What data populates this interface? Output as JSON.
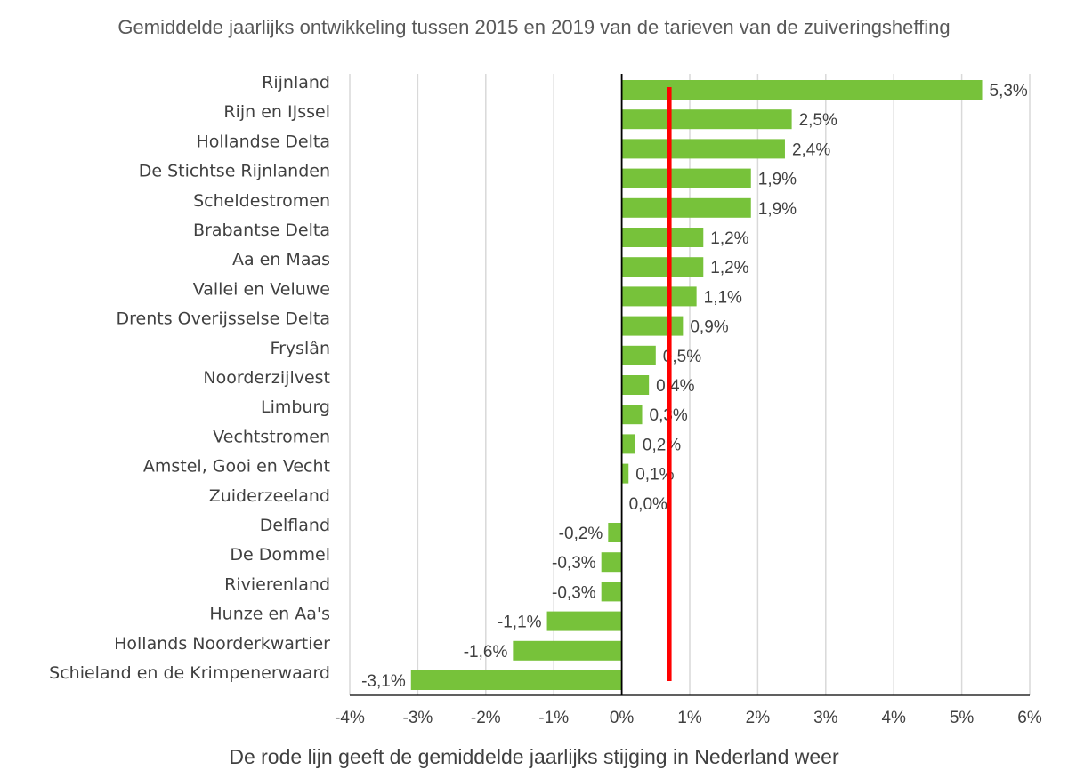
{
  "chart_data": {
    "type": "bar",
    "orientation": "horizontal",
    "title": "Gemiddelde jaarlijks ontwikkeling tussen 2015 en 2019 van de tarieven van de zuiveringsheffing",
    "xlabel": "De rode lijn geeft de gemiddelde jaarlijks stijging in Nederland weer",
    "ylabel": "",
    "xlim": [
      -4,
      6
    ],
    "x_ticks": [
      "-4%",
      "-3%",
      "-2%",
      "-1%",
      "0%",
      "1%",
      "2%",
      "3%",
      "4%",
      "5%",
      "6%"
    ],
    "grid": true,
    "legend": "none",
    "bar_color": "#77c23a",
    "reference_line": {
      "value": 0.7,
      "color": "#ff0000"
    },
    "categories": [
      "Rijnland",
      "Rijn en IJssel",
      "Hollandse Delta",
      "De Stichtse Rijnlanden",
      "Scheldestromen",
      "Brabantse Delta",
      "Aa en Maas",
      "Vallei en Veluwe",
      "Drents Overijsselse Delta",
      "Fryslân",
      "Noorderzijlvest",
      "Limburg",
      "Vechtstromen",
      "Amstel, Gooi en Vecht",
      "Zuiderzeeland",
      "Delfland",
      "De Dommel",
      "Rivierenland",
      "Hunze en Aa's",
      "Hollands Noorderkwartier",
      "Schieland en de Krimpenerwaard"
    ],
    "values": [
      5.3,
      2.5,
      2.4,
      1.9,
      1.9,
      1.2,
      1.2,
      1.1,
      0.9,
      0.5,
      0.4,
      0.3,
      0.2,
      0.1,
      0.0,
      -0.2,
      -0.3,
      -0.3,
      -1.1,
      -1.6,
      -3.1
    ],
    "value_labels": [
      "5,3%",
      "2,5%",
      "2,4%",
      "1,9%",
      "1,9%",
      "1,2%",
      "1,2%",
      "1,1%",
      "0,9%",
      "0,5%",
      "0,4%",
      "0,3%",
      "0,2%",
      "0,1%",
      "0,0%",
      "-0,2%",
      "-0,3%",
      "-0,3%",
      "-1,1%",
      "-1,6%",
      "-3,1%"
    ]
  }
}
